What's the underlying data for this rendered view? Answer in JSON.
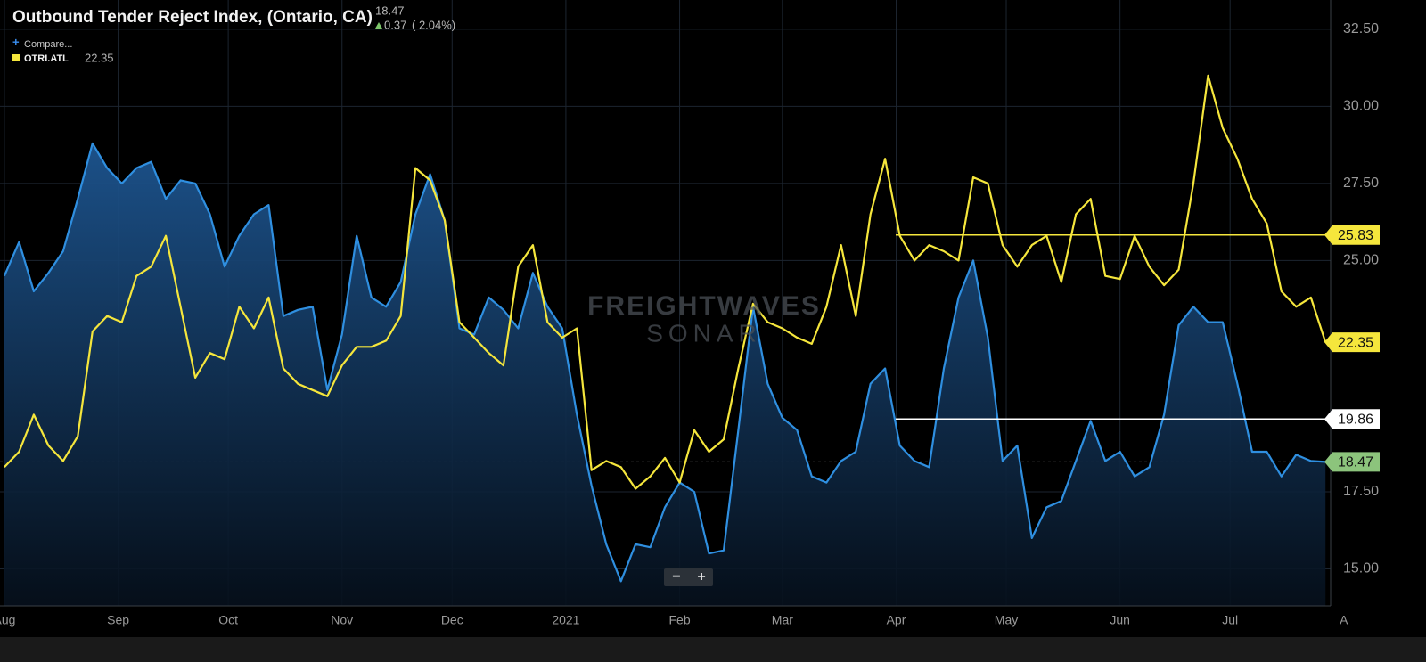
{
  "chart_data": {
    "type": "line",
    "title": "Outbound Tender Reject Index, (Ontario, CA)",
    "change": "0.37",
    "change_pct": "( 2.04%)",
    "compare": "Compare...",
    "watermark": "FREIGHTWAVES",
    "watermark_sub": "SONAR",
    "zoom_out": "−",
    "zoom_in": "+",
    "x": [
      0,
      4,
      8,
      12,
      16,
      20,
      24,
      28,
      32,
      36,
      40,
      44,
      48,
      52,
      56,
      60,
      64,
      68,
      72,
      76,
      80,
      84,
      88,
      92,
      96,
      100,
      104,
      108,
      112,
      116,
      120,
      124,
      128,
      132,
      136,
      140,
      144,
      148,
      152,
      156,
      160,
      164,
      168,
      172,
      176,
      180,
      184,
      188,
      192,
      196,
      200,
      204,
      208,
      212,
      216,
      220,
      224,
      228,
      232,
      236,
      240,
      244,
      248,
      252,
      256,
      260,
      264,
      268,
      272,
      276,
      280,
      284,
      288,
      292,
      296,
      300,
      304,
      308,
      312,
      316,
      320,
      324,
      328,
      332,
      336,
      340,
      344,
      348,
      352,
      356,
      360
    ],
    "series": [
      {
        "color": "#2f8fe0",
        "fill": true,
        "tag_color": "#8cc47c",
        "values": [
          24.5,
          25.6,
          24.0,
          24.6,
          25.3,
          27.0,
          28.8,
          28.0,
          27.5,
          28.0,
          28.2,
          27.0,
          27.6,
          27.5,
          26.5,
          24.8,
          25.8,
          26.5,
          26.8,
          23.2,
          23.4,
          23.5,
          20.8,
          22.6,
          25.8,
          23.8,
          23.5,
          24.3,
          26.5,
          27.8,
          26.3,
          22.8,
          22.6,
          23.8,
          23.4,
          22.8,
          24.6,
          23.5,
          22.8,
          20.0,
          17.7,
          15.8,
          14.6,
          15.8,
          15.7,
          17.0,
          17.8,
          17.5,
          15.5,
          15.6,
          19.5,
          23.5,
          21.0,
          19.9,
          19.5,
          18.0,
          17.8,
          18.5,
          18.8,
          21.0,
          21.5,
          19.0,
          18.5,
          18.3,
          21.5,
          23.8,
          25.0,
          22.5,
          18.5,
          19.0,
          16.0,
          17.0,
          17.2,
          18.5,
          19.8,
          18.5,
          18.8,
          18.0,
          18.3,
          20.0,
          22.9,
          23.5,
          23.0,
          23.0,
          21.0,
          18.8,
          18.8,
          18.0,
          18.7,
          18.5,
          18.47
        ]
      },
      {
        "name": "OTRI.ATL",
        "color": "#f5e63c",
        "fill": false,
        "tag_color": "#f5e63c",
        "values": [
          18.3,
          18.8,
          20.0,
          19.0,
          18.5,
          19.3,
          22.7,
          23.2,
          23.0,
          24.5,
          24.8,
          25.8,
          23.5,
          21.2,
          22.0,
          21.8,
          23.5,
          22.8,
          23.8,
          21.5,
          21.0,
          20.8,
          20.6,
          21.6,
          22.2,
          22.2,
          22.4,
          23.2,
          28.0,
          27.6,
          26.3,
          23.0,
          22.5,
          22.0,
          21.6,
          24.8,
          25.5,
          23.0,
          22.5,
          22.8,
          18.2,
          18.5,
          18.3,
          17.6,
          18.0,
          18.6,
          17.8,
          19.5,
          18.8,
          19.2,
          21.5,
          23.6,
          23.0,
          22.8,
          22.5,
          22.3,
          23.5,
          25.5,
          23.2,
          26.5,
          28.3,
          25.8,
          25.0,
          25.5,
          25.3,
          25.0,
          27.7,
          27.5,
          25.5,
          24.8,
          25.5,
          25.8,
          24.3,
          26.5,
          27.0,
          24.5,
          24.4,
          25.8,
          24.8,
          24.2,
          24.7,
          27.5,
          31.0,
          29.3,
          28.3,
          27.0,
          26.2,
          24.0,
          23.5,
          23.8,
          22.35
        ]
      }
    ],
    "price_lines": [
      {
        "value": 25.83,
        "color": "#f5e63c"
      },
      {
        "value": 19.86,
        "color": "#ffffff"
      }
    ],
    "xlim": [
      -1.2,
      361.4
    ],
    "xticks": [
      {
        "value": 0,
        "label": "Aug"
      },
      {
        "value": 31,
        "label": "Sep"
      },
      {
        "value": 61,
        "label": "Oct"
      },
      {
        "value": 92,
        "label": "Nov"
      },
      {
        "value": 122,
        "label": "Dec"
      },
      {
        "value": 153,
        "label": "2021"
      },
      {
        "value": 184,
        "label": "Feb"
      },
      {
        "value": 212,
        "label": "Mar"
      },
      {
        "value": 243,
        "label": "Apr"
      },
      {
        "value": 273,
        "label": "May"
      },
      {
        "value": 304,
        "label": "Jun"
      },
      {
        "value": 334,
        "label": "Jul"
      },
      {
        "value": 365,
        "label": "A"
      }
    ],
    "ylim": [
      13.8,
      33.45
    ],
    "yticks": [
      {
        "value": 32.5,
        "label": "32.50"
      },
      {
        "value": 30,
        "label": "30.00"
      },
      {
        "value": 27.5,
        "label": "27.50"
      },
      {
        "value": 25,
        "label": "25.00"
      },
      {
        "value": 17.5,
        "label": "17.50"
      },
      {
        "value": 15,
        "label": "15.00"
      }
    ],
    "grid": true
  }
}
